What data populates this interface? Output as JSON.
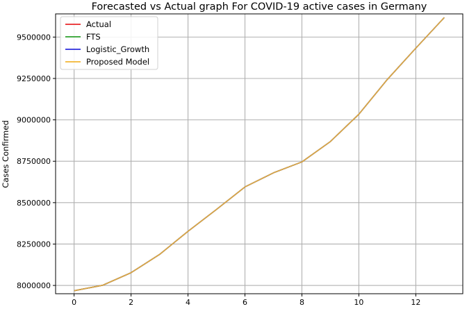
{
  "chart_data": {
    "type": "line",
    "title": "Forecasted vs Actual graph For COVID-19 active cases in Germany",
    "xlabel": "",
    "ylabel": "Cases Confirmed",
    "xlim": [
      -0.65,
      13.65
    ],
    "ylim": [
      7950000,
      9640000
    ],
    "x_ticks": [
      "0",
      "2",
      "4",
      "6",
      "8",
      "10",
      "12"
    ],
    "y_ticks": [
      "8000000",
      "8250000",
      "8500000",
      "8750000",
      "9000000",
      "9250000",
      "9500000"
    ],
    "grid": true,
    "legend_position": "top-left",
    "x": [
      0,
      1,
      2,
      3,
      4,
      5,
      6,
      7,
      8,
      9,
      10,
      11,
      12,
      13
    ],
    "series": [
      {
        "name": "Actual",
        "color": "#e8262a",
        "values": [
          7968000,
          8001000,
          8077000,
          8187000,
          8327000,
          8459000,
          8595000,
          8680000,
          8746000,
          8869000,
          9034000,
          9244000,
          9433000,
          9618000
        ]
      },
      {
        "name": "FTS",
        "color": "#2ca02c",
        "values": [
          7968000,
          8001000,
          8077000,
          8187000,
          8327000,
          8459000,
          8595000,
          8680000,
          8746000,
          8869000,
          9034000,
          9244000,
          9433000,
          9618000
        ]
      },
      {
        "name": "Logistic_Growth",
        "color": "#2b2bdc",
        "values": [
          7968000,
          8001000,
          8077000,
          8187000,
          8327000,
          8459000,
          8595000,
          8680000,
          8746000,
          8869000,
          9034000,
          9244000,
          9433000,
          9618000
        ]
      },
      {
        "name": "Proposed Model",
        "color": "#f2b632",
        "values": [
          7968000,
          8001000,
          8077000,
          8187000,
          8327000,
          8459000,
          8595000,
          8680000,
          8746000,
          8869000,
          9034000,
          9244000,
          9433000,
          9618000
        ]
      }
    ]
  }
}
